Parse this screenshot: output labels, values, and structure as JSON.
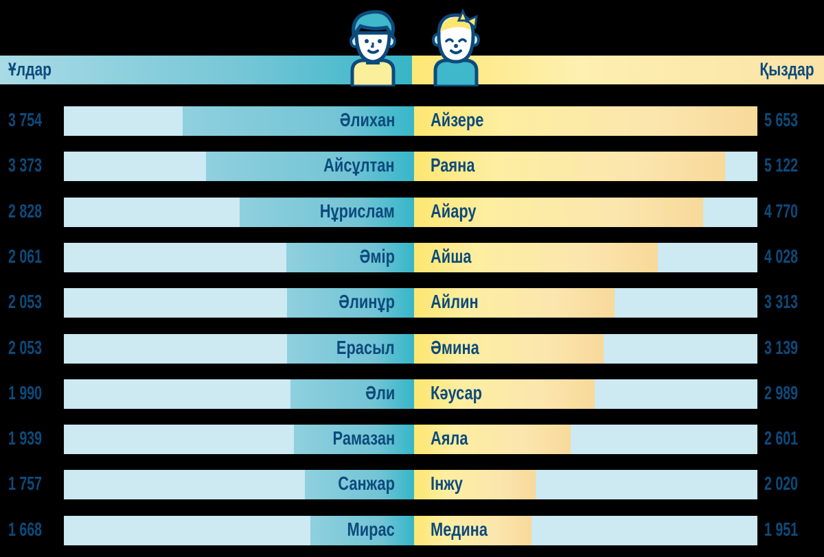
{
  "header": {
    "boys_label": "Ұлдар",
    "girls_label": "Қыздар"
  },
  "icons": {
    "boy": "boy-avatar-icon",
    "girl": "girl-avatar-icon"
  },
  "colors": {
    "background": "#000000",
    "boys_bar": "#38b7c9",
    "girls_bar": "#fde670",
    "track": "#cde9f2",
    "text": "#0d4a7c"
  },
  "rows": [
    {
      "boy_name": "Әлихан",
      "boy_value": "3 754",
      "girl_name": "Айзере",
      "girl_value": "5 653"
    },
    {
      "boy_name": "Айсұлтан",
      "boy_value": "3 373",
      "girl_name": "Раяна",
      "girl_value": "5 122"
    },
    {
      "boy_name": "Нұрислам",
      "boy_value": "2 828",
      "girl_name": "Айару",
      "girl_value": "4 770"
    },
    {
      "boy_name": "Әмір",
      "boy_value": "2 061",
      "girl_name": "Айша",
      "girl_value": "4 028"
    },
    {
      "boy_name": "Әлинұр",
      "boy_value": "2 053",
      "girl_name": "Айлин",
      "girl_value": "3 313"
    },
    {
      "boy_name": "Ерасыл",
      "boy_value": "2 053",
      "girl_name": "Әмина",
      "girl_value": "3 139"
    },
    {
      "boy_name": "Әли",
      "boy_value": "1 990",
      "girl_name": "Кәусар",
      "girl_value": "2 989"
    },
    {
      "boy_name": "Рамазан",
      "boy_value": "1 939",
      "girl_name": "Аяла",
      "girl_value": "2 601"
    },
    {
      "boy_name": "Санжар",
      "boy_value": "1 757",
      "girl_name": "Інжу",
      "girl_value": "2 020"
    },
    {
      "boy_name": "Мирас",
      "boy_value": "1 668",
      "girl_name": "Медина",
      "girl_value": "1 951"
    }
  ],
  "chart_data": {
    "type": "bar",
    "orientation": "horizontal-diverging",
    "title": "",
    "legend": [
      "Ұлдар",
      "Қыздар"
    ],
    "series": [
      {
        "name": "Ұлдар",
        "categories": [
          "Әлихан",
          "Айсұлтан",
          "Нұрислам",
          "Әмір",
          "Әлинұр",
          "Ерасыл",
          "Әли",
          "Рамазан",
          "Санжар",
          "Мирас"
        ],
        "values": [
          3754,
          3373,
          2828,
          2061,
          2053,
          2053,
          1990,
          1939,
          1757,
          1668
        ]
      },
      {
        "name": "Қыздар",
        "categories": [
          "Айзере",
          "Раяна",
          "Айару",
          "Айша",
          "Айлин",
          "Әмина",
          "Кәусар",
          "Аяла",
          "Інжу",
          "Медина"
        ],
        "values": [
          5653,
          5122,
          4770,
          4028,
          3313,
          3139,
          2989,
          2601,
          2020,
          1951
        ]
      }
    ],
    "grid": false
  }
}
